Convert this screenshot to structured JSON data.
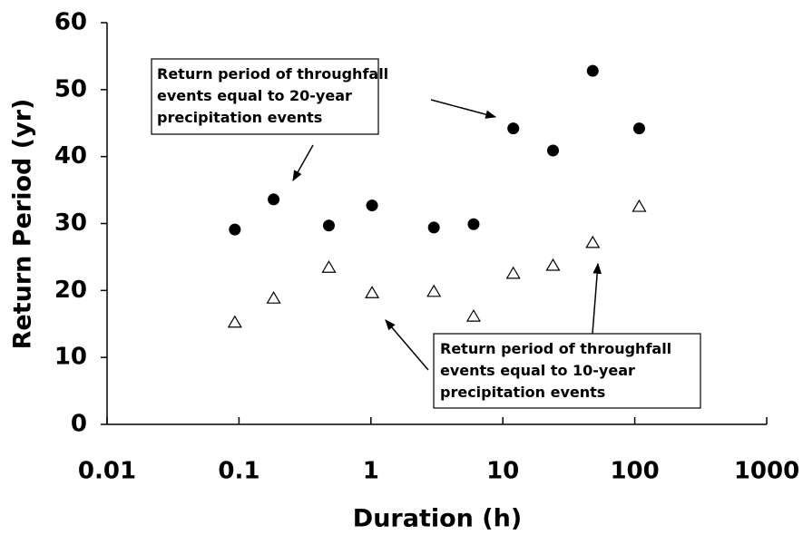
{
  "chart_data": {
    "type": "scatter",
    "x_label": "Duration (h)",
    "y_label": "Return Period (yr)",
    "x_scale": "log",
    "xlim": [
      0.01,
      1000
    ],
    "xticks": [
      0.01,
      0.1,
      1,
      10,
      100,
      1000
    ],
    "ylim": [
      0,
      60
    ],
    "yticks": [
      0,
      10,
      20,
      30,
      40,
      50,
      60
    ],
    "grid": false,
    "series": [
      {
        "marker": "circle",
        "color": "#000000",
        "x": [
          0.093,
          0.183,
          0.48,
          1.02,
          3,
          6,
          12,
          24,
          48,
          108
        ],
        "values": [
          29.1,
          33.6,
          29.7,
          32.7,
          29.4,
          29.9,
          44.2,
          40.9,
          52.8,
          44.2
        ]
      },
      {
        "marker": "triangle",
        "color": "#ffffff",
        "x": [
          0.093,
          0.183,
          0.48,
          1.02,
          3,
          6,
          12,
          24,
          48,
          108
        ],
        "values": [
          15.2,
          18.8,
          23.4,
          19.6,
          19.8,
          16.1,
          22.5,
          23.7,
          27.1,
          32.5
        ]
      }
    ],
    "annotations": [
      {
        "lines": [
          "Return period of throughfall",
          "events equal to 20-year",
          "precipitation events"
        ]
      },
      {
        "lines": [
          "Return period of throughfall",
          "events equal to 10-year",
          "precipitation events"
        ]
      }
    ]
  }
}
